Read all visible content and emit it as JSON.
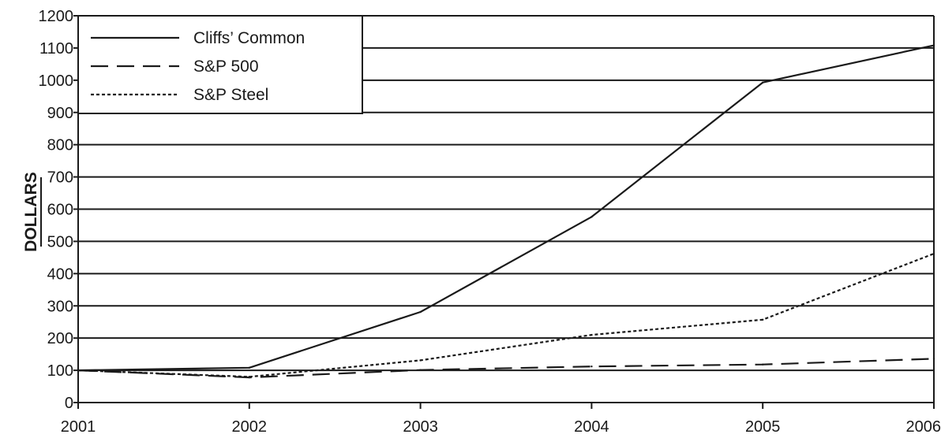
{
  "chart_data": {
    "type": "line",
    "title": "",
    "xlabel": "",
    "ylabel": "DOLLARS",
    "x": [
      "2001",
      "2002",
      "2003",
      "2004",
      "2005",
      "2006"
    ],
    "ylim": [
      0,
      1200
    ],
    "yticks": [
      0,
      100,
      200,
      300,
      400,
      500,
      600,
      700,
      800,
      900,
      1000,
      1100,
      1200
    ],
    "grid": "horizontal",
    "legend_position": "top-left",
    "series": [
      {
        "name": "Cliffs’ Common",
        "style": "solid",
        "values": [
          100,
          108,
          281,
          576,
          993,
          1108
        ]
      },
      {
        "name": "S&P 500",
        "style": "dashed",
        "values": [
          100,
          78,
          101,
          112,
          118,
          136
        ]
      },
      {
        "name": "S&P Steel",
        "style": "dotted",
        "values": [
          100,
          80,
          131,
          210,
          257,
          462
        ]
      }
    ],
    "colors": {
      "line": "#1a1a1a",
      "background": "#ffffff"
    }
  }
}
